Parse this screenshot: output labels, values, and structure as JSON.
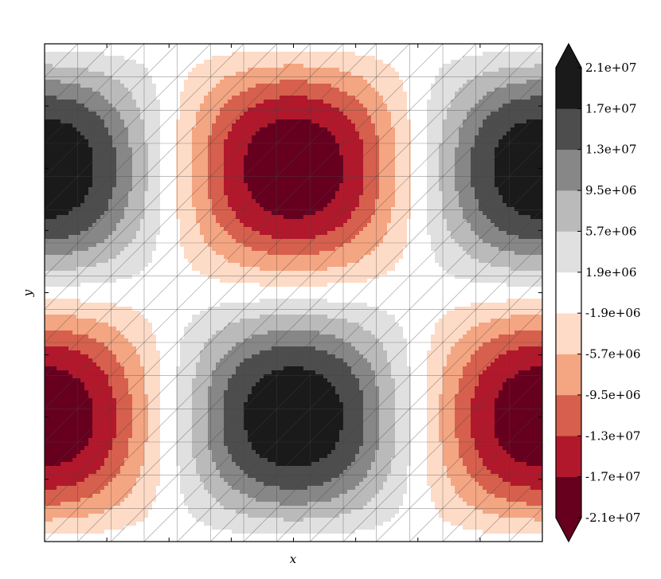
{
  "chart_data": {
    "type": "heatmap",
    "title": "",
    "xlabel": "x",
    "ylabel": "y",
    "grid": false,
    "colormap": "RdGy",
    "colorbar_extend": "both",
    "hatched_triangulation": true,
    "levels": [
      "-2.1e+07",
      "-1.7e+07",
      "-1.3e+07",
      "-9.5e+06",
      "-5.7e+06",
      "-1.9e+06",
      "1.9e+06",
      "5.7e+06",
      "9.5e+06",
      "1.3e+07",
      "1.7e+07",
      "2.1e+07"
    ],
    "level_colors": [
      "#67001f",
      "#b2182b",
      "#d6604d",
      "#f4a582",
      "#fddbc7",
      "#ffffff",
      "#e0e0e0",
      "#bababa",
      "#878787",
      "#4d4d4d",
      "#1a1a1a"
    ],
    "extremes": [
      {
        "label": "min",
        "x": 0.0,
        "y": 0.75,
        "value": -21000000.0
      },
      {
        "label": "max",
        "x": 0.5,
        "y": 0.75,
        "value": 21000000.0
      },
      {
        "label": "min",
        "x": 1.0,
        "y": 0.75,
        "value": -21000000.0
      },
      {
        "label": "max",
        "x": 0.0,
        "y": 0.25,
        "value": 21000000.0
      },
      {
        "label": "min",
        "x": 0.5,
        "y": 0.25,
        "value": -21000000.0
      },
      {
        "label": "max",
        "x": 1.0,
        "y": 0.25,
        "value": 21000000.0
      }
    ]
  }
}
